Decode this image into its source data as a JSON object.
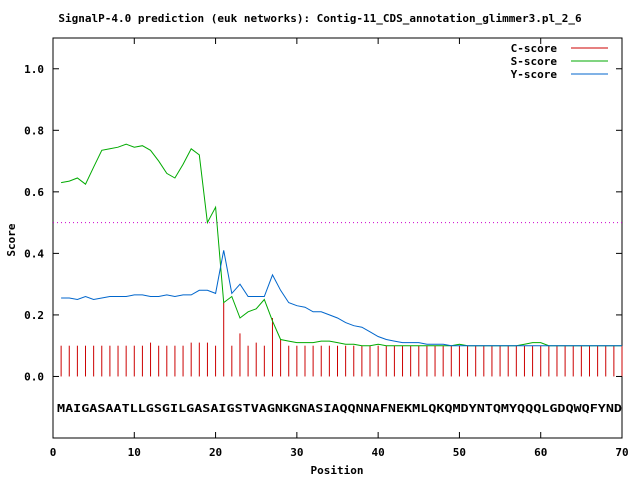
{
  "chart_data": {
    "type": "line",
    "title": "SignalP-4.0 prediction (euk networks): Contig-11_CDS_annotation_glimmer3.pl_2_6",
    "xlabel": "Position",
    "ylabel": "Score",
    "xlim": [
      0,
      70
    ],
    "ylim": [
      -0.2,
      1.1
    ],
    "x_ticks": [
      "0",
      "10",
      "20",
      "30",
      "40",
      "50",
      "60",
      "70"
    ],
    "y_ticks": [
      "0.0",
      "0.2",
      "0.4",
      "0.6",
      "0.8",
      "1.0"
    ],
    "x_tick_values": [
      0,
      10,
      20,
      30,
      40,
      50,
      60,
      70
    ],
    "y_tick_values": [
      0.0,
      0.2,
      0.4,
      0.6,
      0.8,
      1.0
    ],
    "threshold": 0.5,
    "sequence": "MAIGASAATLLGSGILGASAIGSTVAGNKGNASIAQQNNAFNEKMLQKQMDYNTQMYQQQLGDQWQFYND",
    "legend_position": "top-right",
    "series": [
      {
        "name": "C-score",
        "color": "#cc0000",
        "style": "impulses",
        "x": [
          1,
          2,
          3,
          4,
          5,
          6,
          7,
          8,
          9,
          10,
          11,
          12,
          13,
          14,
          15,
          16,
          17,
          18,
          19,
          20,
          21,
          22,
          23,
          24,
          25,
          26,
          27,
          28,
          29,
          30,
          31,
          32,
          33,
          34,
          35,
          36,
          37,
          38,
          39,
          40,
          41,
          42,
          43,
          44,
          45,
          46,
          47,
          48,
          49,
          50,
          51,
          52,
          53,
          54,
          55,
          56,
          57,
          58,
          59,
          60,
          61,
          62,
          63,
          64,
          65,
          66,
          67,
          68,
          69,
          70
        ],
        "values": [
          0.1,
          0.1,
          0.1,
          0.1,
          0.1,
          0.1,
          0.1,
          0.1,
          0.1,
          0.1,
          0.1,
          0.11,
          0.1,
          0.1,
          0.1,
          0.1,
          0.11,
          0.11,
          0.11,
          0.1,
          0.24,
          0.1,
          0.14,
          0.1,
          0.11,
          0.1,
          0.19,
          0.12,
          0.1,
          0.1,
          0.1,
          0.1,
          0.1,
          0.1,
          0.1,
          0.1,
          0.1,
          0.1,
          0.1,
          0.1,
          0.1,
          0.1,
          0.1,
          0.1,
          0.1,
          0.1,
          0.1,
          0.1,
          0.1,
          0.1,
          0.1,
          0.1,
          0.1,
          0.1,
          0.1,
          0.1,
          0.1,
          0.1,
          0.1,
          0.1,
          0.1,
          0.1,
          0.1,
          0.1,
          0.1,
          0.1,
          0.1,
          0.1,
          0.1,
          0.1
        ]
      },
      {
        "name": "S-score",
        "color": "#00aa00",
        "style": "line",
        "x": [
          1,
          2,
          3,
          4,
          5,
          6,
          7,
          8,
          9,
          10,
          11,
          12,
          13,
          14,
          15,
          16,
          17,
          18,
          19,
          20,
          21,
          22,
          23,
          24,
          25,
          26,
          27,
          28,
          29,
          30,
          31,
          32,
          33,
          34,
          35,
          36,
          37,
          38,
          39,
          40,
          41,
          42,
          43,
          44,
          45,
          46,
          47,
          48,
          49,
          50,
          51,
          52,
          53,
          54,
          55,
          56,
          57,
          58,
          59,
          60,
          61,
          62,
          63,
          64,
          65,
          66,
          67,
          68,
          69,
          70
        ],
        "values": [
          0.63,
          0.635,
          0.645,
          0.625,
          0.68,
          0.735,
          0.74,
          0.745,
          0.755,
          0.745,
          0.75,
          0.735,
          0.7,
          0.66,
          0.645,
          0.69,
          0.74,
          0.72,
          0.5,
          0.55,
          0.24,
          0.26,
          0.19,
          0.21,
          0.22,
          0.25,
          0.18,
          0.12,
          0.115,
          0.11,
          0.11,
          0.11,
          0.115,
          0.115,
          0.11,
          0.105,
          0.105,
          0.1,
          0.1,
          0.105,
          0.1,
          0.1,
          0.1,
          0.1,
          0.1,
          0.1,
          0.1,
          0.1,
          0.1,
          0.105,
          0.1,
          0.1,
          0.1,
          0.1,
          0.1,
          0.1,
          0.1,
          0.105,
          0.11,
          0.11,
          0.1,
          0.1,
          0.1,
          0.1,
          0.1,
          0.1,
          0.1,
          0.1,
          0.1,
          0.1
        ]
      },
      {
        "name": "Y-score",
        "color": "#0066cc",
        "style": "line",
        "x": [
          1,
          2,
          3,
          4,
          5,
          6,
          7,
          8,
          9,
          10,
          11,
          12,
          13,
          14,
          15,
          16,
          17,
          18,
          19,
          20,
          21,
          22,
          23,
          24,
          25,
          26,
          27,
          28,
          29,
          30,
          31,
          32,
          33,
          34,
          35,
          36,
          37,
          38,
          39,
          40,
          41,
          42,
          43,
          44,
          45,
          46,
          47,
          48,
          49,
          50,
          51,
          52,
          53,
          54,
          55,
          56,
          57,
          58,
          59,
          60,
          61,
          62,
          63,
          64,
          65,
          66,
          67,
          68,
          69,
          70
        ],
        "values": [
          0.255,
          0.255,
          0.25,
          0.26,
          0.25,
          0.255,
          0.26,
          0.26,
          0.26,
          0.265,
          0.265,
          0.26,
          0.26,
          0.265,
          0.26,
          0.265,
          0.265,
          0.28,
          0.28,
          0.27,
          0.41,
          0.27,
          0.3,
          0.26,
          0.26,
          0.26,
          0.33,
          0.28,
          0.24,
          0.23,
          0.225,
          0.21,
          0.21,
          0.2,
          0.19,
          0.175,
          0.165,
          0.16,
          0.145,
          0.13,
          0.12,
          0.115,
          0.11,
          0.11,
          0.11,
          0.105,
          0.105,
          0.105,
          0.1,
          0.1,
          0.1,
          0.1,
          0.1,
          0.1,
          0.1,
          0.1,
          0.1,
          0.1,
          0.1,
          0.1,
          0.1,
          0.1,
          0.1,
          0.1,
          0.1,
          0.1,
          0.1,
          0.1,
          0.1,
          0.1
        ]
      }
    ]
  }
}
